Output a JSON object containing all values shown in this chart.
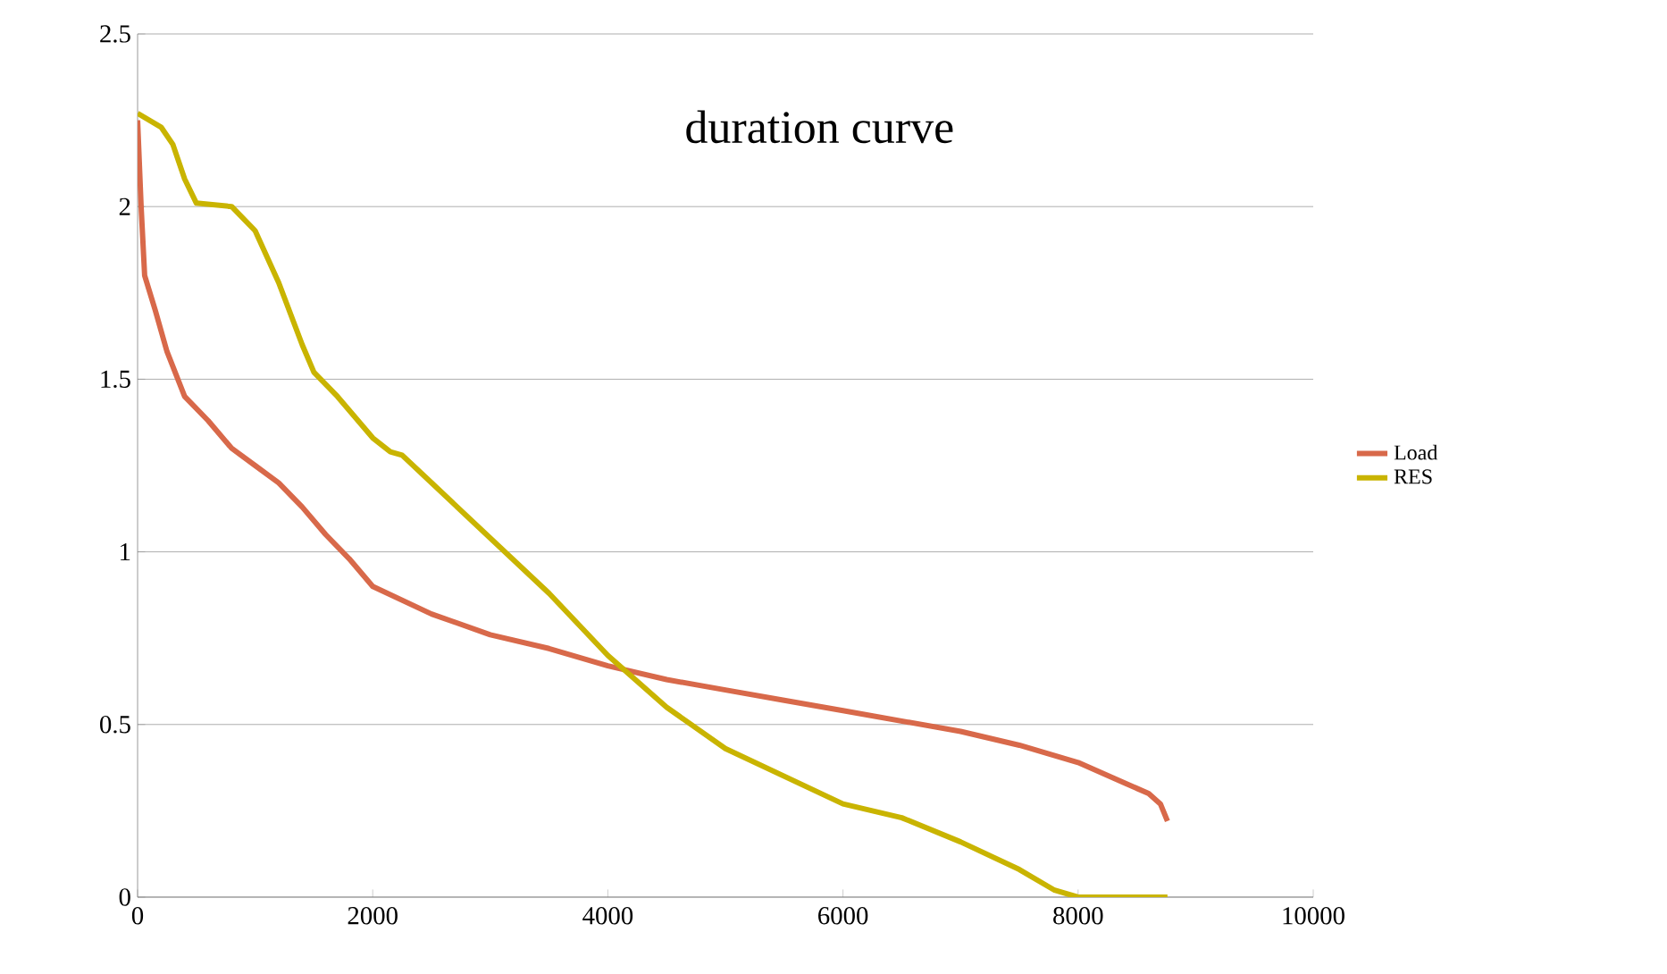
{
  "chart_data": {
    "type": "line",
    "title": "duration curve",
    "series": [
      {
        "name": "Load",
        "color": "#d8694a",
        "x": [
          0,
          30,
          60,
          150,
          250,
          400,
          600,
          800,
          1000,
          1200,
          1400,
          1600,
          1800,
          2000,
          2500,
          3000,
          3500,
          4000,
          4500,
          5000,
          5500,
          6000,
          6500,
          7000,
          7500,
          8000,
          8400,
          8600,
          8700,
          8760
        ],
        "values": [
          2.25,
          2.0,
          1.8,
          1.7,
          1.58,
          1.45,
          1.38,
          1.3,
          1.25,
          1.2,
          1.13,
          1.05,
          0.98,
          0.9,
          0.82,
          0.76,
          0.72,
          0.67,
          0.63,
          0.6,
          0.57,
          0.54,
          0.51,
          0.48,
          0.44,
          0.39,
          0.33,
          0.3,
          0.27,
          0.22
        ]
      },
      {
        "name": "RES",
        "color": "#c9b400",
        "x": [
          0,
          200,
          300,
          400,
          500,
          800,
          1000,
          1200,
          1400,
          1500,
          1700,
          1900,
          2000,
          2150,
          2250,
          2500,
          3000,
          3500,
          4000,
          4500,
          5000,
          5500,
          6000,
          6500,
          7000,
          7500,
          7800,
          8000,
          8760
        ],
        "values": [
          2.27,
          2.23,
          2.18,
          2.08,
          2.01,
          2.0,
          1.93,
          1.78,
          1.6,
          1.52,
          1.45,
          1.37,
          1.33,
          1.29,
          1.28,
          1.2,
          1.04,
          0.88,
          0.7,
          0.55,
          0.43,
          0.35,
          0.27,
          0.23,
          0.16,
          0.08,
          0.02,
          0,
          0
        ]
      }
    ],
    "xlim": [
      0,
      10000
    ],
    "xticks": [
      0,
      2000,
      4000,
      6000,
      8000,
      10000
    ],
    "ylim": [
      0,
      2.5
    ],
    "yticks": [
      0,
      0.5,
      1,
      1.5,
      2,
      2.5
    ],
    "grid": "y",
    "legend": "right",
    "marker": "none",
    "line_style": "solid"
  }
}
